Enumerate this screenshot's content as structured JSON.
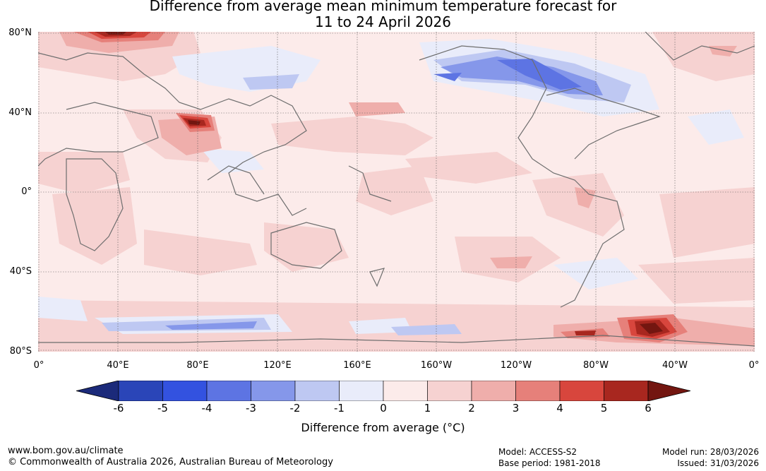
{
  "title_line1": "Difference from average mean minimum temperature forecast for",
  "title_line2": "11 to 24 April 2026",
  "lat_labels": [
    "80°N",
    "40°N",
    "0°",
    "40°S",
    "80°S"
  ],
  "lon_labels": [
    "0°",
    "40°E",
    "80°E",
    "120°E",
    "160°E",
    "160°W",
    "120°W",
    "80°W",
    "40°W",
    "0°"
  ],
  "colorbar": {
    "ticks": [
      "-6",
      "-5",
      "-4",
      "-3",
      "-2",
      "-1",
      "0",
      "1",
      "2",
      "3",
      "4",
      "5",
      "6"
    ],
    "colors": [
      "#1b2a7a",
      "#2a45b8",
      "#3352e0",
      "#5d74e3",
      "#8597ea",
      "#bec8f2",
      "#e9ecfa",
      "#fcebea",
      "#f6d2d1",
      "#efaeab",
      "#e6807a",
      "#d8463d",
      "#a8271f",
      "#731610"
    ],
    "title": "Difference from average (°C)"
  },
  "footer": {
    "url": "www.bom.gov.au/climate",
    "copyright": "© Commonwealth of Australia 2026, Australian Bureau of Meteorology",
    "model": "Model: ACCESS-S2",
    "base_period": "Base period: 1981-2018",
    "model_run": "Model run: 28/03/2026",
    "issued": "Issued: 31/03/2026"
  }
}
